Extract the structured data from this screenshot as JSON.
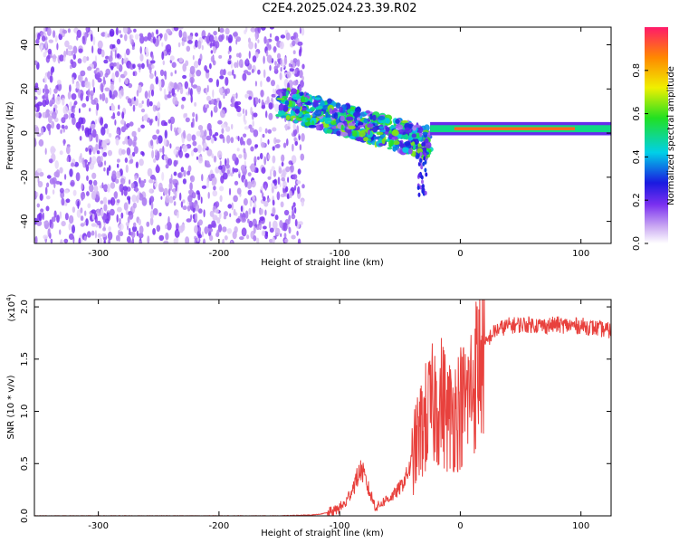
{
  "title": "C2E4.2025.024.23.39.R02",
  "chart_data": [
    {
      "type": "heatmap",
      "xlabel": "Height of straight line (km)",
      "ylabel": "Frequency (Hz)",
      "xlim": [
        -353,
        125
      ],
      "ylim": [
        -50,
        48
      ],
      "xticks": [
        -300,
        -200,
        -100,
        0,
        100
      ],
      "yticks": [
        -40,
        -20,
        0,
        20,
        40
      ],
      "colorbar": {
        "label": "Normalized spectral amplitude",
        "range": [
          0,
          1
        ],
        "ticks": [
          "0.0",
          "0.2",
          "0.4",
          "0.6",
          "0.8"
        ],
        "tick_values": [
          0,
          0.2,
          0.4,
          0.6,
          0.8
        ]
      },
      "regions": [
        {
          "name": "broadband noise",
          "x_range": [
            -353,
            -130
          ],
          "freq_range": [
            -50,
            48
          ],
          "amplitude": 0.15
        },
        {
          "name": "coherent band",
          "x_range": [
            -150,
            -25
          ],
          "freq_center_start": 14,
          "freq_center_end": -5,
          "amplitude": 0.35
        },
        {
          "name": "spur",
          "x_range": [
            -35,
            -28
          ],
          "freq_range": [
            -28,
            -5
          ],
          "amplitude": 0.2
        },
        {
          "name": "steady tone",
          "x_range": [
            -25,
            125
          ],
          "freq_center": 2,
          "amplitude": 0.9
        }
      ]
    },
    {
      "type": "line",
      "xlabel": "Height of straight line (km)",
      "ylabel": "SNR (10 * v/v)",
      "yscale_note": "(x10",
      "yscale_exp": "4",
      "yscale_close": ")",
      "xlim": [
        -353,
        125
      ],
      "ylim": [
        0,
        2.07
      ],
      "xticks": [
        -300,
        -200,
        -100,
        0,
        100
      ],
      "yticks": [
        "0.0",
        "0.5",
        "1.0",
        "1.5",
        "2.0"
      ],
      "ytick_values": [
        0,
        0.5,
        1.0,
        1.5,
        2.0
      ],
      "color": "#e8413d",
      "x": [
        -353,
        -250,
        -150,
        -120,
        -105,
        -95,
        -88,
        -82,
        -76,
        -70,
        -62,
        -55,
        -48,
        -42,
        -36,
        -30,
        -25,
        -20,
        -15,
        -10,
        -5,
        0,
        5,
        10,
        15,
        20,
        25,
        30,
        40,
        50,
        60,
        70,
        80,
        90,
        100,
        110,
        125
      ],
      "values": [
        0.0,
        0.0,
        0.0,
        0.01,
        0.04,
        0.12,
        0.3,
        0.45,
        0.25,
        0.08,
        0.15,
        0.2,
        0.3,
        0.45,
        0.7,
        0.9,
        1.0,
        1.1,
        1.1,
        0.95,
        1.0,
        1.05,
        1.1,
        1.25,
        1.45,
        1.62,
        1.72,
        1.78,
        1.82,
        1.83,
        1.83,
        1.82,
        1.83,
        1.82,
        1.82,
        1.8,
        1.77
      ]
    }
  ]
}
